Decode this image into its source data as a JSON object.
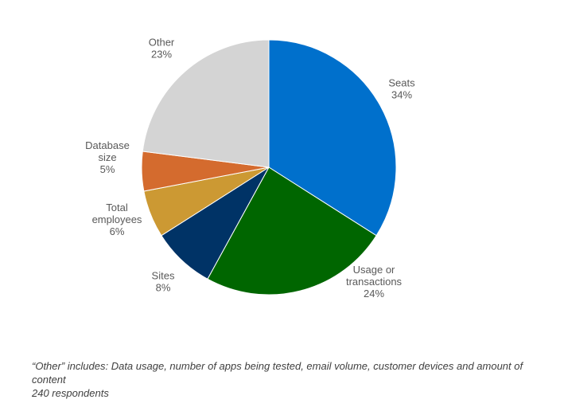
{
  "chart_data": {
    "type": "pie",
    "slices": [
      {
        "label_lines": [
          "Seats"
        ],
        "percent_label": "34%",
        "value": 34,
        "color": "#0070cc"
      },
      {
        "label_lines": [
          "Usage or",
          "transactions"
        ],
        "percent_label": "24%",
        "value": 24,
        "color": "#006600"
      },
      {
        "label_lines": [
          "Sites"
        ],
        "percent_label": "8%",
        "value": 8,
        "color": "#003366"
      },
      {
        "label_lines": [
          "Total",
          "employees"
        ],
        "percent_label": "6%",
        "value": 6,
        "color": "#cc9933"
      },
      {
        "label_lines": [
          "Database",
          "size"
        ],
        "percent_label": "5%",
        "value": 5,
        "color": "#d46b2e"
      },
      {
        "label_lines": [
          "Other"
        ],
        "percent_label": "23%",
        "value": 23,
        "color": "#d4d4d4"
      }
    ],
    "start_angle_deg": 0,
    "direction": "clockwise",
    "legend": "none"
  },
  "footnote": {
    "line1": "“Other” includes: Data usage, number of apps being tested, email volume, customer devices and amount of content",
    "line2": "240 respondents"
  }
}
